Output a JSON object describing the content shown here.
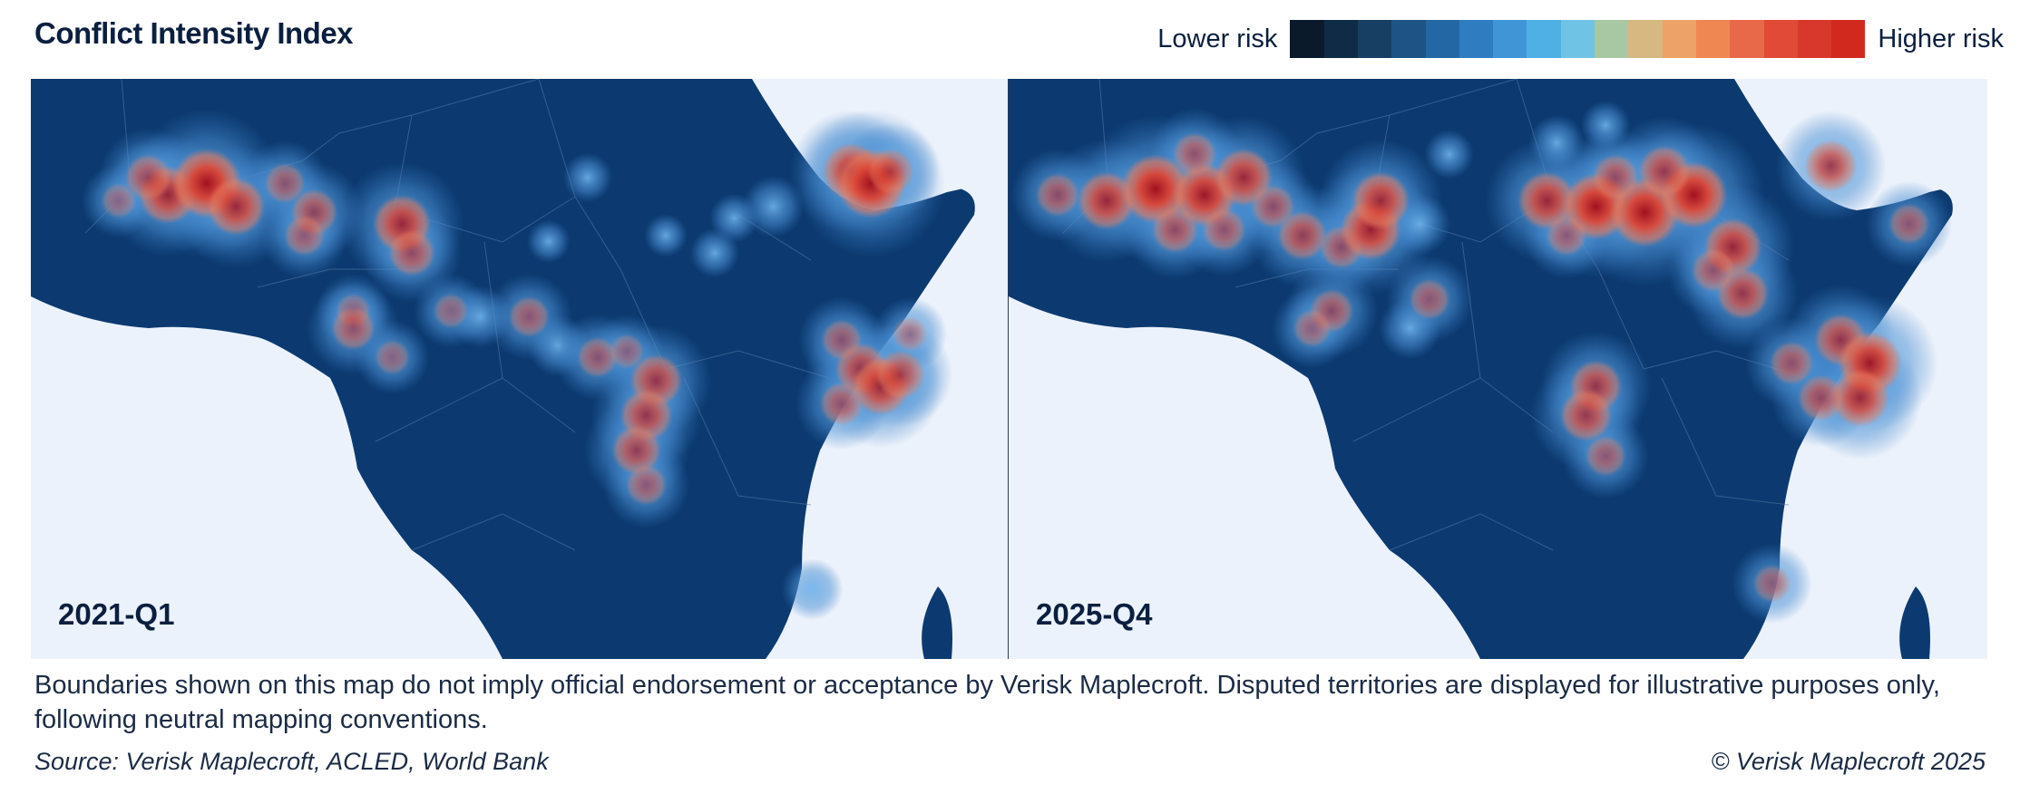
{
  "title": "Conflict Intensity Index",
  "legend": {
    "low_label": "Lower risk",
    "high_label": "Higher risk",
    "colors": [
      "#0b1a2a",
      "#0f2b45",
      "#173f63",
      "#1d5485",
      "#2467a5",
      "#2f7cc0",
      "#3f95d6",
      "#4fb0e6",
      "#6fc4e6",
      "#a8c8a4",
      "#d6b880",
      "#eda267",
      "#ef8753",
      "#e8684a",
      "#e04a37",
      "#d8382c",
      "#d2291f"
    ]
  },
  "maps": {
    "left": {
      "period": "2021-Q1"
    },
    "right": {
      "period": "2025-Q4"
    }
  },
  "hotspot_style": {
    "base_land": "#0c3a70",
    "ocean": "#ecf2fb",
    "glow": "#5aa2e0",
    "core_light": "#e8563f",
    "core_dark": "#9e0e22"
  },
  "hotspots": {
    "left": [
      [
        0.14,
        0.2,
        2.0
      ],
      [
        0.18,
        0.18,
        2.4
      ],
      [
        0.21,
        0.22,
        2.0
      ],
      [
        0.12,
        0.17,
        1.6
      ],
      [
        0.26,
        0.18,
        1.4
      ],
      [
        0.09,
        0.21,
        1.2
      ],
      [
        0.29,
        0.23,
        1.6
      ],
      [
        0.28,
        0.27,
        1.4
      ],
      [
        0.38,
        0.25,
        2.0
      ],
      [
        0.39,
        0.3,
        1.6
      ],
      [
        0.33,
        0.4,
        1.2
      ],
      [
        0.33,
        0.43,
        1.5
      ],
      [
        0.37,
        0.48,
        1.2
      ],
      [
        0.43,
        0.4,
        1.2
      ],
      [
        0.46,
        0.41,
        1.0
      ],
      [
        0.51,
        0.41,
        1.4
      ],
      [
        0.54,
        0.46,
        1.0
      ],
      [
        0.58,
        0.48,
        1.4
      ],
      [
        0.61,
        0.47,
        1.2
      ],
      [
        0.64,
        0.52,
        1.8
      ],
      [
        0.63,
        0.58,
        1.8
      ],
      [
        0.62,
        0.64,
        1.7
      ],
      [
        0.63,
        0.7,
        1.4
      ],
      [
        0.83,
        0.45,
        1.4
      ],
      [
        0.85,
        0.5,
        1.8
      ],
      [
        0.87,
        0.53,
        2.0
      ],
      [
        0.89,
        0.51,
        1.7
      ],
      [
        0.83,
        0.56,
        1.5
      ],
      [
        0.9,
        0.44,
        1.2
      ],
      [
        0.84,
        0.16,
        2.0
      ],
      [
        0.86,
        0.18,
        2.4
      ],
      [
        0.88,
        0.16,
        1.6
      ],
      [
        0.8,
        0.88,
        1.0
      ],
      [
        0.76,
        0.22,
        1.0
      ],
      [
        0.72,
        0.24,
        0.8
      ],
      [
        0.7,
        0.3,
        0.8
      ],
      [
        0.57,
        0.17,
        0.8
      ],
      [
        0.65,
        0.27,
        0.7
      ],
      [
        0.53,
        0.28,
        0.7
      ]
    ],
    "right": [
      [
        0.05,
        0.2,
        1.5
      ],
      [
        0.1,
        0.21,
        2.0
      ],
      [
        0.15,
        0.19,
        2.4
      ],
      [
        0.2,
        0.2,
        2.2
      ],
      [
        0.24,
        0.17,
        2.0
      ],
      [
        0.19,
        0.13,
        1.5
      ],
      [
        0.17,
        0.26,
        1.6
      ],
      [
        0.22,
        0.26,
        1.5
      ],
      [
        0.27,
        0.22,
        1.5
      ],
      [
        0.3,
        0.27,
        1.7
      ],
      [
        0.34,
        0.29,
        1.5
      ],
      [
        0.37,
        0.26,
        2.1
      ],
      [
        0.38,
        0.21,
        2.0
      ],
      [
        0.33,
        0.4,
        1.5
      ],
      [
        0.31,
        0.43,
        1.3
      ],
      [
        0.43,
        0.38,
        1.4
      ],
      [
        0.41,
        0.43,
        1.0
      ],
      [
        0.55,
        0.21,
        2.0
      ],
      [
        0.6,
        0.22,
        2.3
      ],
      [
        0.65,
        0.23,
        2.4
      ],
      [
        0.7,
        0.2,
        2.3
      ],
      [
        0.67,
        0.16,
        1.8
      ],
      [
        0.62,
        0.17,
        1.6
      ],
      [
        0.57,
        0.27,
        1.4
      ],
      [
        0.74,
        0.29,
        2.0
      ],
      [
        0.75,
        0.37,
        1.8
      ],
      [
        0.72,
        0.33,
        1.5
      ],
      [
        0.85,
        0.45,
        1.8
      ],
      [
        0.88,
        0.49,
        2.2
      ],
      [
        0.87,
        0.55,
        2.0
      ],
      [
        0.83,
        0.55,
        1.6
      ],
      [
        0.8,
        0.49,
        1.5
      ],
      [
        0.84,
        0.15,
        1.8
      ],
      [
        0.92,
        0.25,
        1.4
      ],
      [
        0.6,
        0.53,
        1.8
      ],
      [
        0.59,
        0.58,
        1.8
      ],
      [
        0.61,
        0.65,
        1.4
      ],
      [
        0.78,
        0.87,
        1.3
      ],
      [
        0.42,
        0.25,
        1.0
      ],
      [
        0.56,
        0.11,
        0.9
      ],
      [
        0.61,
        0.08,
        0.8
      ],
      [
        0.45,
        0.13,
        0.8
      ]
    ]
  },
  "disclaimer": "Boundaries shown on this map do not imply official endorsement or acceptance by Verisk Maplecroft. Disputed territories are displayed for illustrative purposes only, following neutral mapping conventions.",
  "source": "Source: Verisk Maplecroft, ACLED, World Bank",
  "copyright": "© Verisk Maplecroft 2025"
}
